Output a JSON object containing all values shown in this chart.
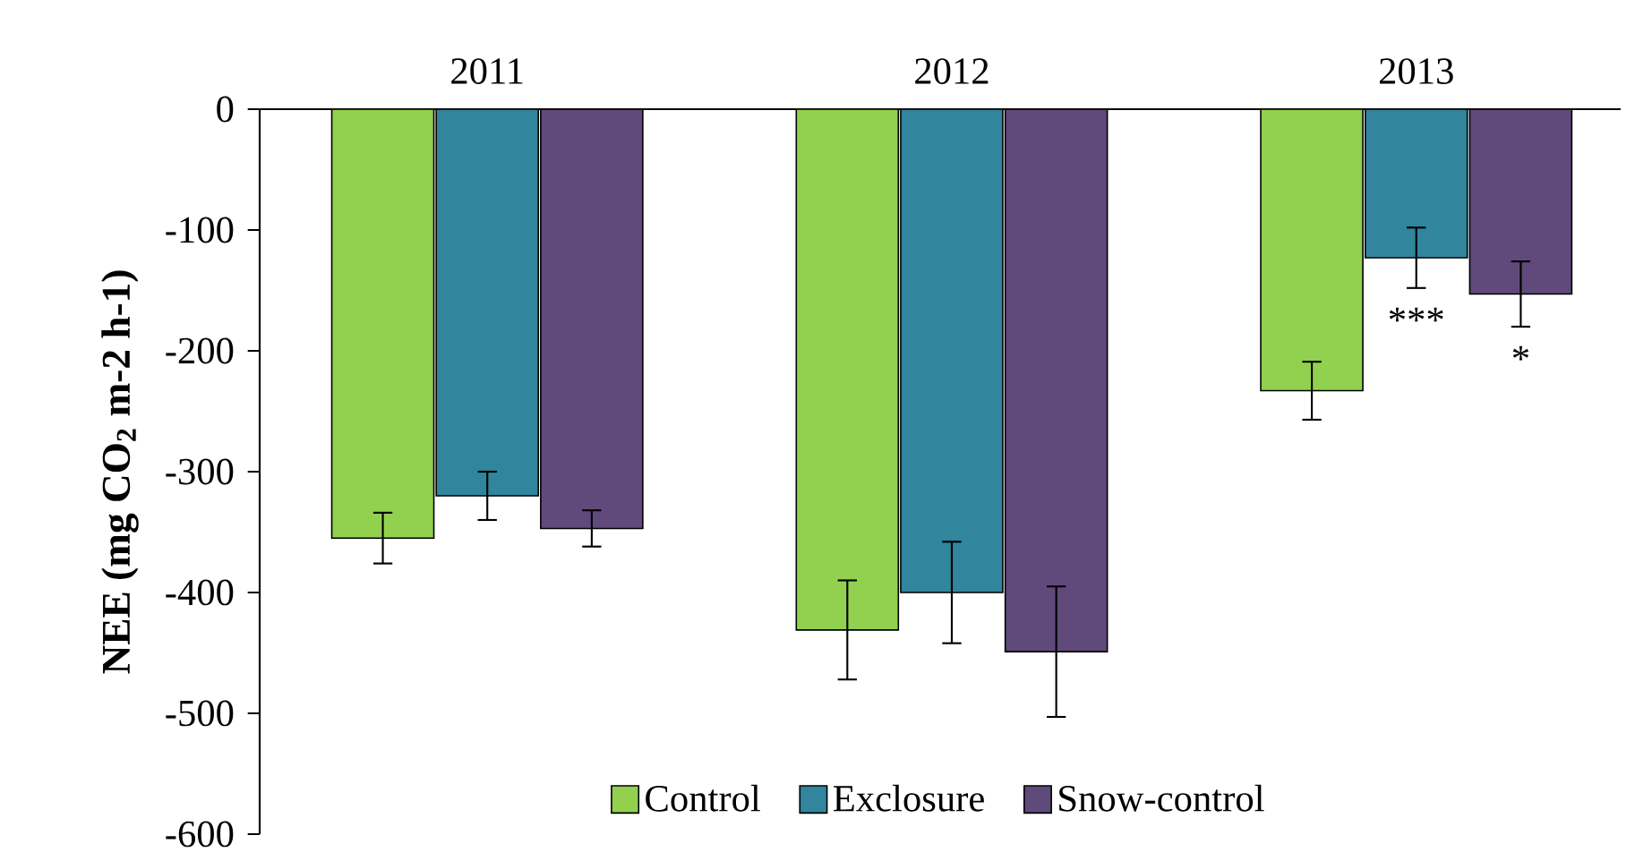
{
  "chart_data": {
    "type": "bar",
    "ylabel": "NEE (mg CO$_{2}$ m-2 h-1)",
    "categories": [
      "2011",
      "2012",
      "2013"
    ],
    "series": [
      {
        "name": "Control",
        "color": "#92d050",
        "values": [
          -355,
          -431,
          -233
        ],
        "errors": [
          21,
          41,
          24
        ]
      },
      {
        "name": "Exclosure",
        "color": "#31859c",
        "values": [
          -320,
          -400,
          -123
        ],
        "errors": [
          20,
          42,
          25
        ]
      },
      {
        "name": "Snow-control",
        "color": "#604a7b",
        "values": [
          -347,
          -449,
          -153
        ],
        "errors": [
          15,
          54,
          27
        ]
      }
    ],
    "ylim": [
      -600,
      0
    ],
    "yticks": [
      -600,
      -500,
      -400,
      -300,
      -200,
      -100,
      0
    ],
    "legend": "bottom",
    "grid": false,
    "annotations": [
      "***",
      "*"
    ]
  }
}
